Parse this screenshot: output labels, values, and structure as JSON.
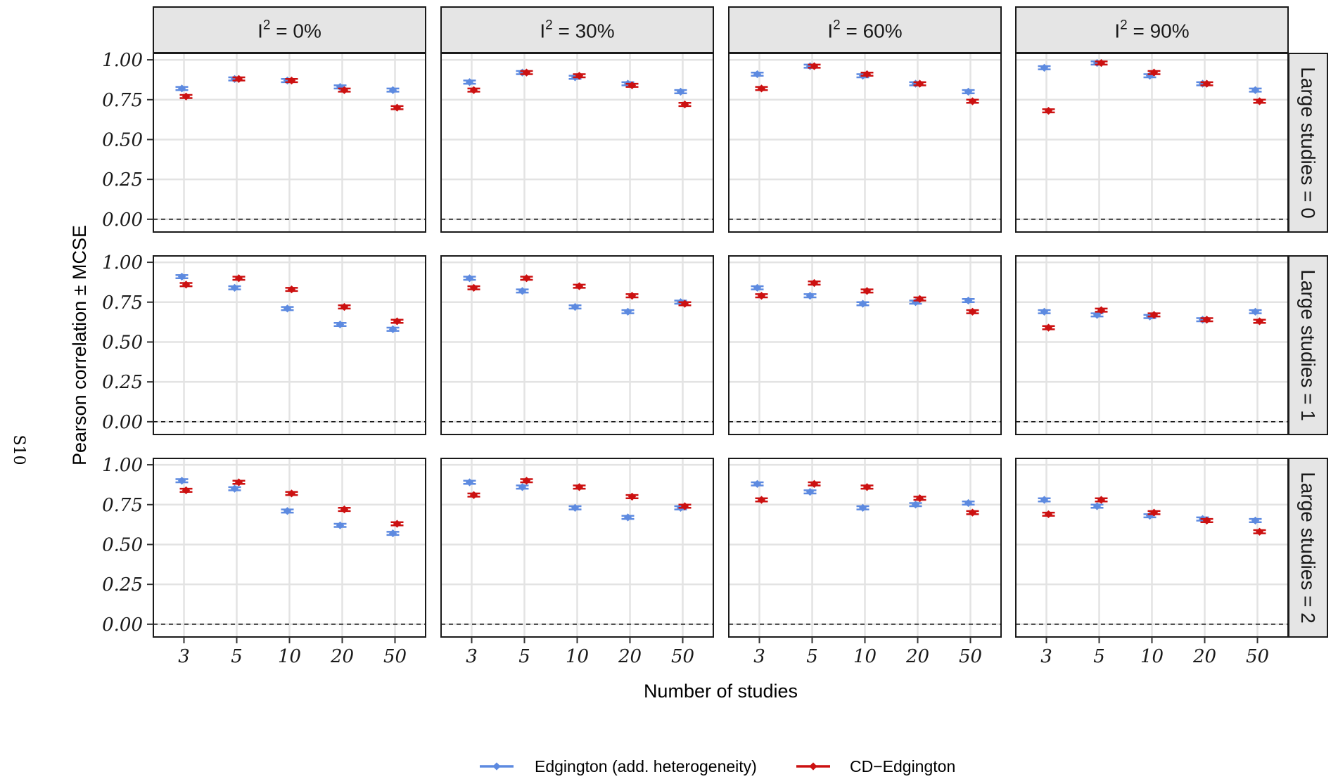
{
  "page_label": "S10",
  "chart_data": {
    "type": "scatter",
    "xlabel": "Number of studies",
    "ylabel": "Pearson correlation ± MCSE",
    "x_categories": [
      "3",
      "5",
      "10",
      "20",
      "50"
    ],
    "y_ticks": [
      "0.00",
      "0.25",
      "0.50",
      "0.75",
      "1.00"
    ],
    "ylim": [
      -0.08,
      1.04
    ],
    "reference_line": 0,
    "grid": true,
    "legend_position": "bottom",
    "columns": [
      {
        "prefix": "I",
        "sup": "2",
        "suffix": " = 0%"
      },
      {
        "prefix": "I",
        "sup": "2",
        "suffix": " = 30%"
      },
      {
        "prefix": "I",
        "sup": "2",
        "suffix": " = 60%"
      },
      {
        "prefix": "I",
        "sup": "2",
        "suffix": " = 90%"
      }
    ],
    "rows": [
      "Large studies = 0",
      "Large studies = 1",
      "Large studies = 2"
    ],
    "series": [
      {
        "name": "Edgington (add. heterogeneity)",
        "color": "#5d8ae0"
      },
      {
        "name": "CD−Edgington",
        "color": "#cc1111"
      }
    ],
    "mcse": 0.01,
    "panels": [
      {
        "row": 0,
        "col": 0,
        "values": [
          [
            0.82,
            0.88,
            0.87,
            0.83,
            0.81
          ],
          [
            0.77,
            0.88,
            0.87,
            0.81,
            0.7
          ]
        ]
      },
      {
        "row": 0,
        "col": 1,
        "values": [
          [
            0.86,
            0.92,
            0.89,
            0.85,
            0.8
          ],
          [
            0.81,
            0.92,
            0.9,
            0.84,
            0.72
          ]
        ]
      },
      {
        "row": 0,
        "col": 2,
        "values": [
          [
            0.91,
            0.96,
            0.9,
            0.85,
            0.8
          ],
          [
            0.82,
            0.96,
            0.91,
            0.85,
            0.74
          ]
        ]
      },
      {
        "row": 0,
        "col": 3,
        "values": [
          [
            0.95,
            0.98,
            0.9,
            0.85,
            0.81
          ],
          [
            0.68,
            0.98,
            0.92,
            0.85,
            0.74
          ]
        ]
      },
      {
        "row": 1,
        "col": 0,
        "values": [
          [
            0.91,
            0.84,
            0.71,
            0.61,
            0.58
          ],
          [
            0.86,
            0.9,
            0.83,
            0.72,
            0.63
          ]
        ]
      },
      {
        "row": 1,
        "col": 1,
        "values": [
          [
            0.9,
            0.82,
            0.72,
            0.69,
            0.75
          ],
          [
            0.84,
            0.9,
            0.85,
            0.79,
            0.74
          ]
        ]
      },
      {
        "row": 1,
        "col": 2,
        "values": [
          [
            0.84,
            0.79,
            0.74,
            0.75,
            0.76
          ],
          [
            0.79,
            0.87,
            0.82,
            0.77,
            0.69
          ]
        ]
      },
      {
        "row": 1,
        "col": 3,
        "values": [
          [
            0.69,
            0.67,
            0.66,
            0.64,
            0.69
          ],
          [
            0.59,
            0.7,
            0.67,
            0.64,
            0.63
          ]
        ]
      },
      {
        "row": 2,
        "col": 0,
        "values": [
          [
            0.9,
            0.85,
            0.71,
            0.62,
            0.57
          ],
          [
            0.84,
            0.89,
            0.82,
            0.72,
            0.63
          ]
        ]
      },
      {
        "row": 2,
        "col": 1,
        "values": [
          [
            0.89,
            0.86,
            0.73,
            0.67,
            0.73
          ],
          [
            0.81,
            0.9,
            0.86,
            0.8,
            0.74
          ]
        ]
      },
      {
        "row": 2,
        "col": 2,
        "values": [
          [
            0.88,
            0.83,
            0.73,
            0.75,
            0.76
          ],
          [
            0.78,
            0.88,
            0.86,
            0.79,
            0.7
          ]
        ]
      },
      {
        "row": 2,
        "col": 3,
        "values": [
          [
            0.78,
            0.74,
            0.68,
            0.66,
            0.65
          ],
          [
            0.69,
            0.78,
            0.7,
            0.65,
            0.58
          ]
        ]
      }
    ]
  }
}
